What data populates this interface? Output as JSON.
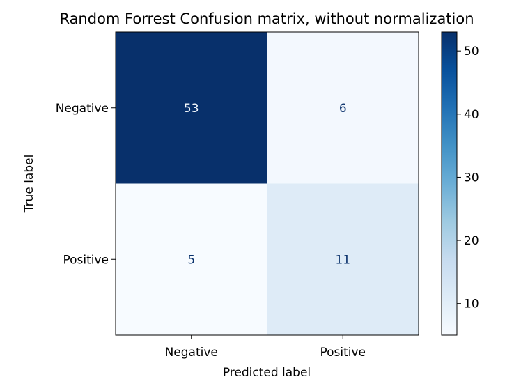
{
  "chart_data": {
    "type": "heatmap",
    "title": "Random Forrest Confusion matrix, without normalization",
    "xlabel": "Predicted label",
    "ylabel": "True label",
    "x_categories": [
      "Negative",
      "Positive"
    ],
    "y_categories": [
      "Negative",
      "Positive"
    ],
    "values": [
      [
        53,
        6
      ],
      [
        5,
        11
      ]
    ],
    "colormap": "Blues",
    "colorbar": {
      "range": [
        5,
        53
      ],
      "ticks": [
        10,
        20,
        30,
        40,
        50
      ]
    },
    "grid": false
  }
}
